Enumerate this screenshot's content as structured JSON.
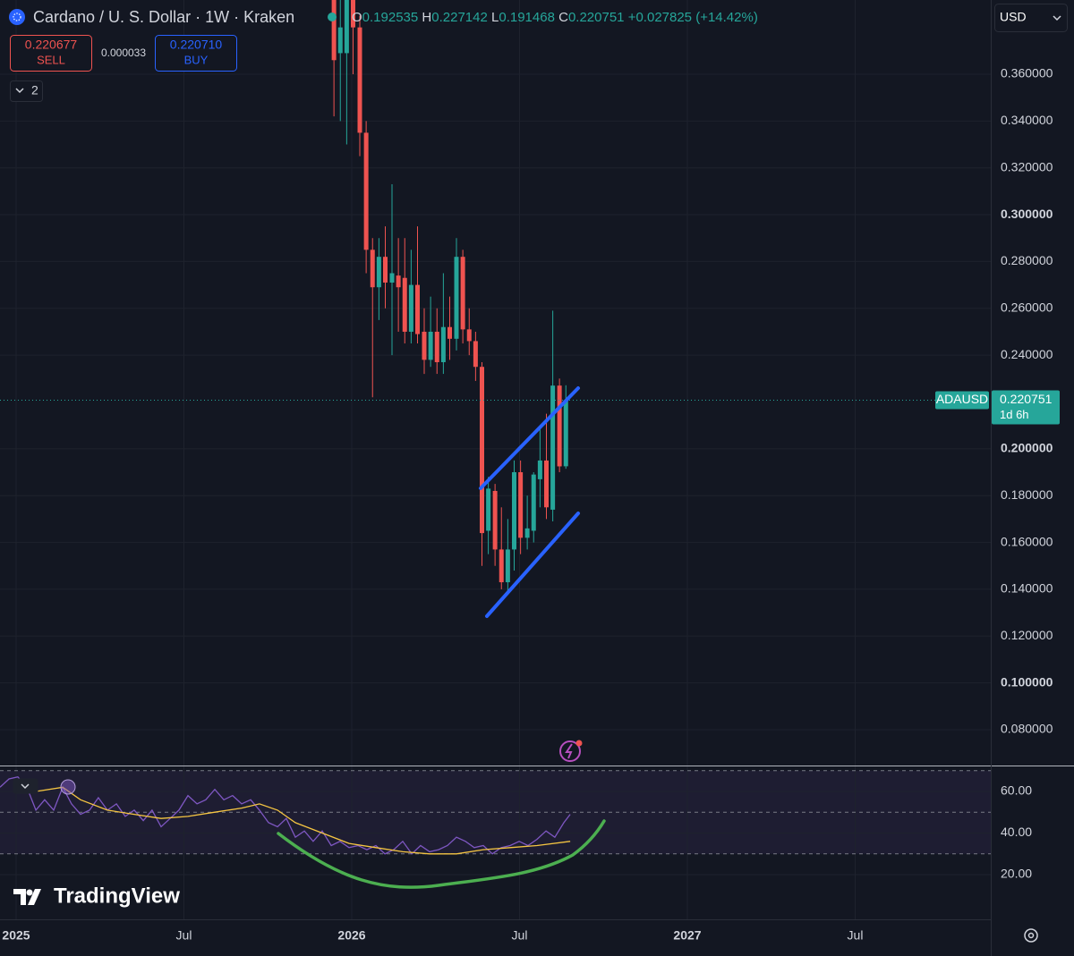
{
  "header": {
    "symbol": "Cardano / U. S. Dollar · 1W · Kraken",
    "o_label": "O",
    "h_label": "H",
    "l_label": "L",
    "c_label": "C",
    "change": "+0.027825 (+14.42%)",
    "currency": "USD"
  },
  "trade": {
    "sell_price": 0.220677,
    "sell_label": "SELL",
    "spread": 3.3e-05,
    "buy_price": "0.220710",
    "buy_label": "BUY"
  },
  "indicators_toggle": "2",
  "watermark": "TradingView",
  "chart_data": [
    {
      "type": "candlestick",
      "x": [
        2025.947,
        2025.966,
        2025.985,
        2026.004,
        2026.024,
        2026.043,
        2026.062,
        2026.081,
        2026.1,
        2026.12,
        2026.139,
        2026.158,
        2026.177,
        2026.196,
        2026.216,
        2026.235,
        2026.254,
        2026.273,
        2026.292,
        2026.312,
        2026.331,
        2026.35,
        2026.369,
        2026.388,
        2026.407,
        2026.427,
        2026.446,
        2026.465,
        2026.484,
        2026.503,
        2026.523,
        2026.542,
        2026.561,
        2026.58,
        2026.599,
        2026.619,
        2026.638
      ],
      "open": [
        0.395,
        0.369,
        0.369,
        0.395,
        0.38,
        0.335,
        0.285,
        0.269,
        0.282,
        0.271,
        0.274,
        0.273,
        0.25,
        0.27,
        0.25,
        0.238,
        0.25,
        0.237,
        0.252,
        0.247,
        0.282,
        0.251,
        0.246,
        0.235,
        0.165,
        0.182,
        0.157,
        0.143,
        0.157,
        0.19,
        0.162,
        0.165,
        0.187,
        0.195,
        0.174,
        0.227,
        0.192535
      ],
      "high": [
        0.4,
        0.395,
        0.4,
        0.4,
        0.385,
        0.34,
        0.29,
        0.29,
        0.295,
        0.313,
        0.29,
        0.29,
        0.285,
        0.295,
        0.26,
        0.265,
        0.26,
        0.275,
        0.265,
        0.29,
        0.285,
        0.26,
        0.25,
        0.237,
        0.188,
        0.185,
        0.175,
        0.17,
        0.195,
        0.195,
        0.18,
        0.19,
        0.21,
        0.215,
        0.259,
        0.23,
        0.227142
      ],
      "low": [
        0.342,
        0.34,
        0.33,
        0.36,
        0.325,
        0.275,
        0.222,
        0.255,
        0.26,
        0.24,
        0.25,
        0.245,
        0.245,
        0.245,
        0.232,
        0.235,
        0.232,
        0.232,
        0.238,
        0.242,
        0.245,
        0.24,
        0.229,
        0.15,
        0.155,
        0.15,
        0.14,
        0.138,
        0.148,
        0.155,
        0.157,
        0.16,
        0.175,
        0.17,
        0.169,
        0.19,
        0.191468
      ],
      "close": [
        0.366,
        0.38,
        0.395,
        0.38,
        0.335,
        0.285,
        0.269,
        0.282,
        0.271,
        0.275,
        0.269,
        0.25,
        0.27,
        0.249,
        0.238,
        0.25,
        0.237,
        0.252,
        0.247,
        0.282,
        0.251,
        0.246,
        0.235,
        0.164,
        0.183,
        0.157,
        0.143,
        0.157,
        0.19,
        0.162,
        0.166,
        0.189,
        0.195,
        0.175,
        0.227,
        0.1925,
        0.220751
      ],
      "up_color": "#26a69a",
      "down_color": "#ef5350",
      "ylim": [
        0.0651,
        0.3917
      ],
      "yticks": [
        {
          "value": 0.36,
          "label": "0.360000"
        },
        {
          "value": 0.34,
          "label": "0.340000"
        },
        {
          "value": 0.32,
          "label": "0.320000"
        },
        {
          "value": 0.3,
          "label": "0.300000"
        },
        {
          "value": 0.28,
          "label": "0.280000"
        },
        {
          "value": 0.26,
          "label": "0.260000"
        },
        {
          "value": 0.24,
          "label": "0.240000"
        },
        {
          "value": 0.2,
          "label": "0.200000"
        },
        {
          "value": 0.18,
          "label": "0.180000"
        },
        {
          "value": 0.16,
          "label": "0.160000"
        },
        {
          "value": 0.14,
          "label": "0.140000"
        },
        {
          "value": 0.12,
          "label": "0.120000"
        },
        {
          "value": 0.1,
          "label": "0.100000"
        },
        {
          "value": 0.08,
          "label": "0.080000"
        }
      ],
      "xlim": [
        2024.952,
        2027.904
      ],
      "xticks": [
        {
          "value": 2025,
          "label": "2025"
        },
        {
          "value": 2025.5,
          "label": "Jul"
        },
        {
          "value": 2026,
          "label": "2026"
        },
        {
          "value": 2026.5,
          "label": "Jul"
        },
        {
          "value": 2027,
          "label": "2027"
        },
        {
          "value": 2027.5,
          "label": "Jul"
        }
      ],
      "grid": true,
      "price_tag": {
        "ticker": "ADAUSD",
        "countdown": "1d 6h"
      }
    },
    {
      "type": "line",
      "lines": [
        {
          "color": "#7e57c2",
          "x": [
            2024.952,
            2024.979,
            2025.005,
            2025.032,
            2025.059,
            2025.085,
            2025.112,
            2025.139,
            2025.165,
            2025.192,
            2025.219,
            2025.245,
            2025.272,
            2025.299,
            2025.325,
            2025.352,
            2025.379,
            2025.405,
            2025.432,
            2025.459,
            2025.485,
            2025.512,
            2025.539,
            2025.565,
            2025.592,
            2025.619,
            2025.645,
            2025.672,
            2025.699,
            2025.725,
            2025.752,
            2025.779,
            2025.805,
            2025.832,
            2025.859,
            2025.885,
            2025.912,
            2025.939,
            2025.965,
            2025.992,
            2026.019,
            2026.045,
            2026.072,
            2026.099,
            2026.125,
            2026.152,
            2026.179,
            2026.205,
            2026.232,
            2026.259,
            2026.285,
            2026.312,
            2026.339,
            2026.365,
            2026.392,
            2026.419,
            2026.445,
            2026.472,
            2026.499,
            2026.525,
            2026.552,
            2026.579,
            2026.605,
            2026.632,
            2026.651
          ],
          "values": [
            62,
            66,
            67,
            62,
            51,
            56,
            51,
            62,
            54,
            49,
            51,
            57,
            51,
            54,
            48,
            51,
            46,
            51,
            43,
            47,
            51,
            58,
            54,
            56,
            61,
            56,
            58,
            54,
            56,
            51,
            45,
            43,
            47,
            38,
            41,
            36,
            41,
            34,
            36,
            33,
            34,
            32,
            34,
            30,
            32,
            36,
            30,
            34,
            31,
            32,
            34,
            38,
            36,
            33,
            34,
            30,
            33,
            34,
            36,
            34,
            37,
            41,
            38,
            45,
            49
          ]
        },
        {
          "color": "#f5c542",
          "x": [
            2025.059,
            2025.139,
            2025.192,
            2025.272,
            2025.352,
            2025.432,
            2025.512,
            2025.592,
            2025.672,
            2025.725,
            2025.779,
            2025.832,
            2025.912,
            2025.992,
            2026.072,
            2026.152,
            2026.232,
            2026.312,
            2026.392,
            2026.472,
            2026.552,
            2026.651
          ],
          "values": [
            60,
            62,
            56,
            51,
            49,
            47,
            48,
            50,
            52,
            54,
            51,
            45,
            40,
            35,
            33,
            31,
            30,
            30,
            32,
            33,
            34,
            36
          ]
        }
      ],
      "levels": [
        70,
        50,
        30
      ],
      "ylim": [
        -1.5,
        70.75
      ],
      "yticks": [
        {
          "value": 60,
          "label": "60.00"
        },
        {
          "value": 40,
          "label": "40.00"
        },
        {
          "value": 20,
          "label": "20.00"
        }
      ]
    }
  ]
}
